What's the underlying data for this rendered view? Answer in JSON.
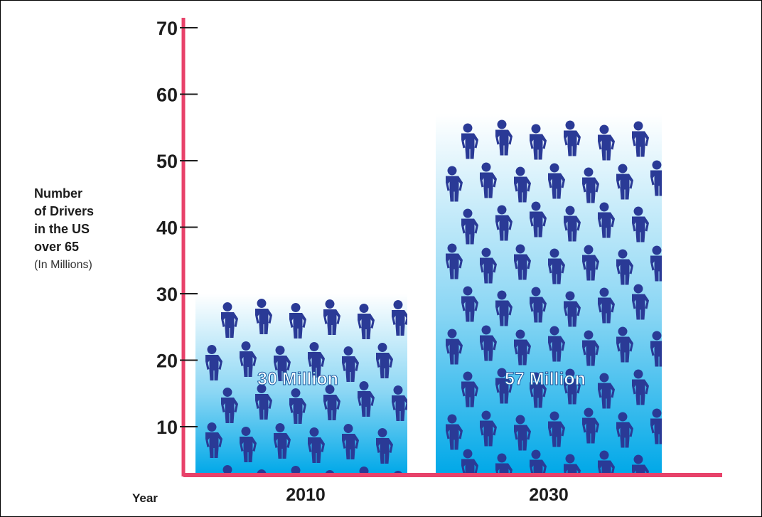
{
  "colors": {
    "axis": "#e8426a",
    "bar_top": "#ffffff",
    "bar_bottom": "#00a8e8",
    "figure": "#2a3a96",
    "text": "#1c1c1c",
    "bar_label": "#ffffff"
  },
  "chart_data": {
    "type": "bar",
    "categories": [
      "2010",
      "2030"
    ],
    "values": [
      30,
      57
    ],
    "bar_labels": [
      "30 Million",
      "57 Million"
    ],
    "title": "",
    "xlabel": "Year",
    "ylabel_lines": [
      "Number",
      "of Drivers",
      "in the US",
      "over 65"
    ],
    "ylabel_unit": "(In Millions)",
    "ylim": [
      0,
      70
    ],
    "yticks": [
      10,
      20,
      30,
      40,
      50,
      60,
      70
    ],
    "grid": false,
    "legend": "none",
    "bar_fill_icon": "person-icon"
  }
}
